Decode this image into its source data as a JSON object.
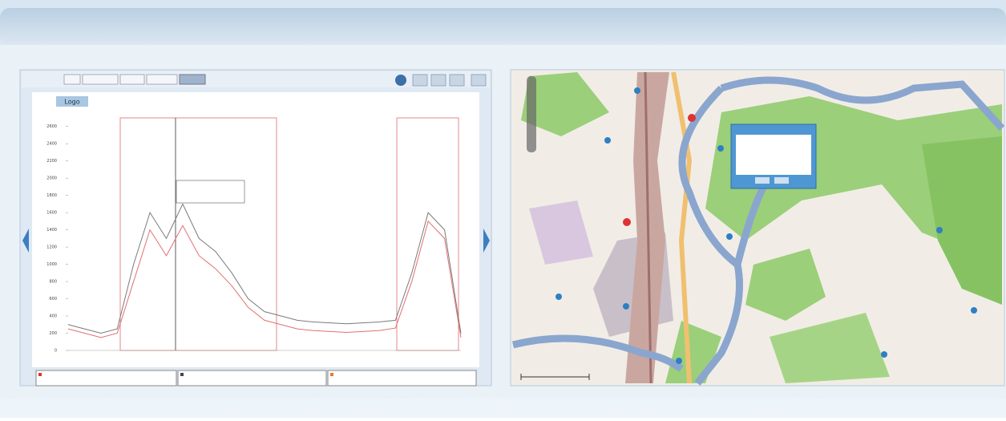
{
  "app": {
    "logo": "Logo"
  },
  "chart_data": {
    "type": "line",
    "categories": [
      null,
      null,
      null,
      null,
      null,
      null,
      null,
      null,
      null,
      null,
      null,
      null,
      null,
      null,
      null,
      null,
      null,
      null,
      null,
      null,
      null,
      null,
      null,
      null,
      null
    ],
    "series": [
      {
        "color": "#7a7a7a",
        "values": [
          300,
          250,
          200,
          250,
          1000,
          1600,
          1300,
          1700,
          1300,
          1150,
          900,
          600,
          450,
          400,
          350,
          330,
          320,
          310,
          320,
          330,
          350,
          900,
          1600,
          1400,
          200
        ]
      },
      {
        "color": "#e07070",
        "values": [
          250,
          200,
          150,
          200,
          800,
          1400,
          1100,
          1450,
          1100,
          950,
          750,
          500,
          350,
          300,
          250,
          230,
          220,
          210,
          220,
          230,
          260,
          800,
          1500,
          1300,
          150
        ]
      }
    ],
    "ylim": [
      0,
      2700
    ],
    "yticks": [
      0,
      200,
      400,
      600,
      800,
      1000,
      1200,
      1400,
      1600,
      1800,
      2000,
      2200,
      2400,
      2600
    ],
    "grid": false
  }
}
